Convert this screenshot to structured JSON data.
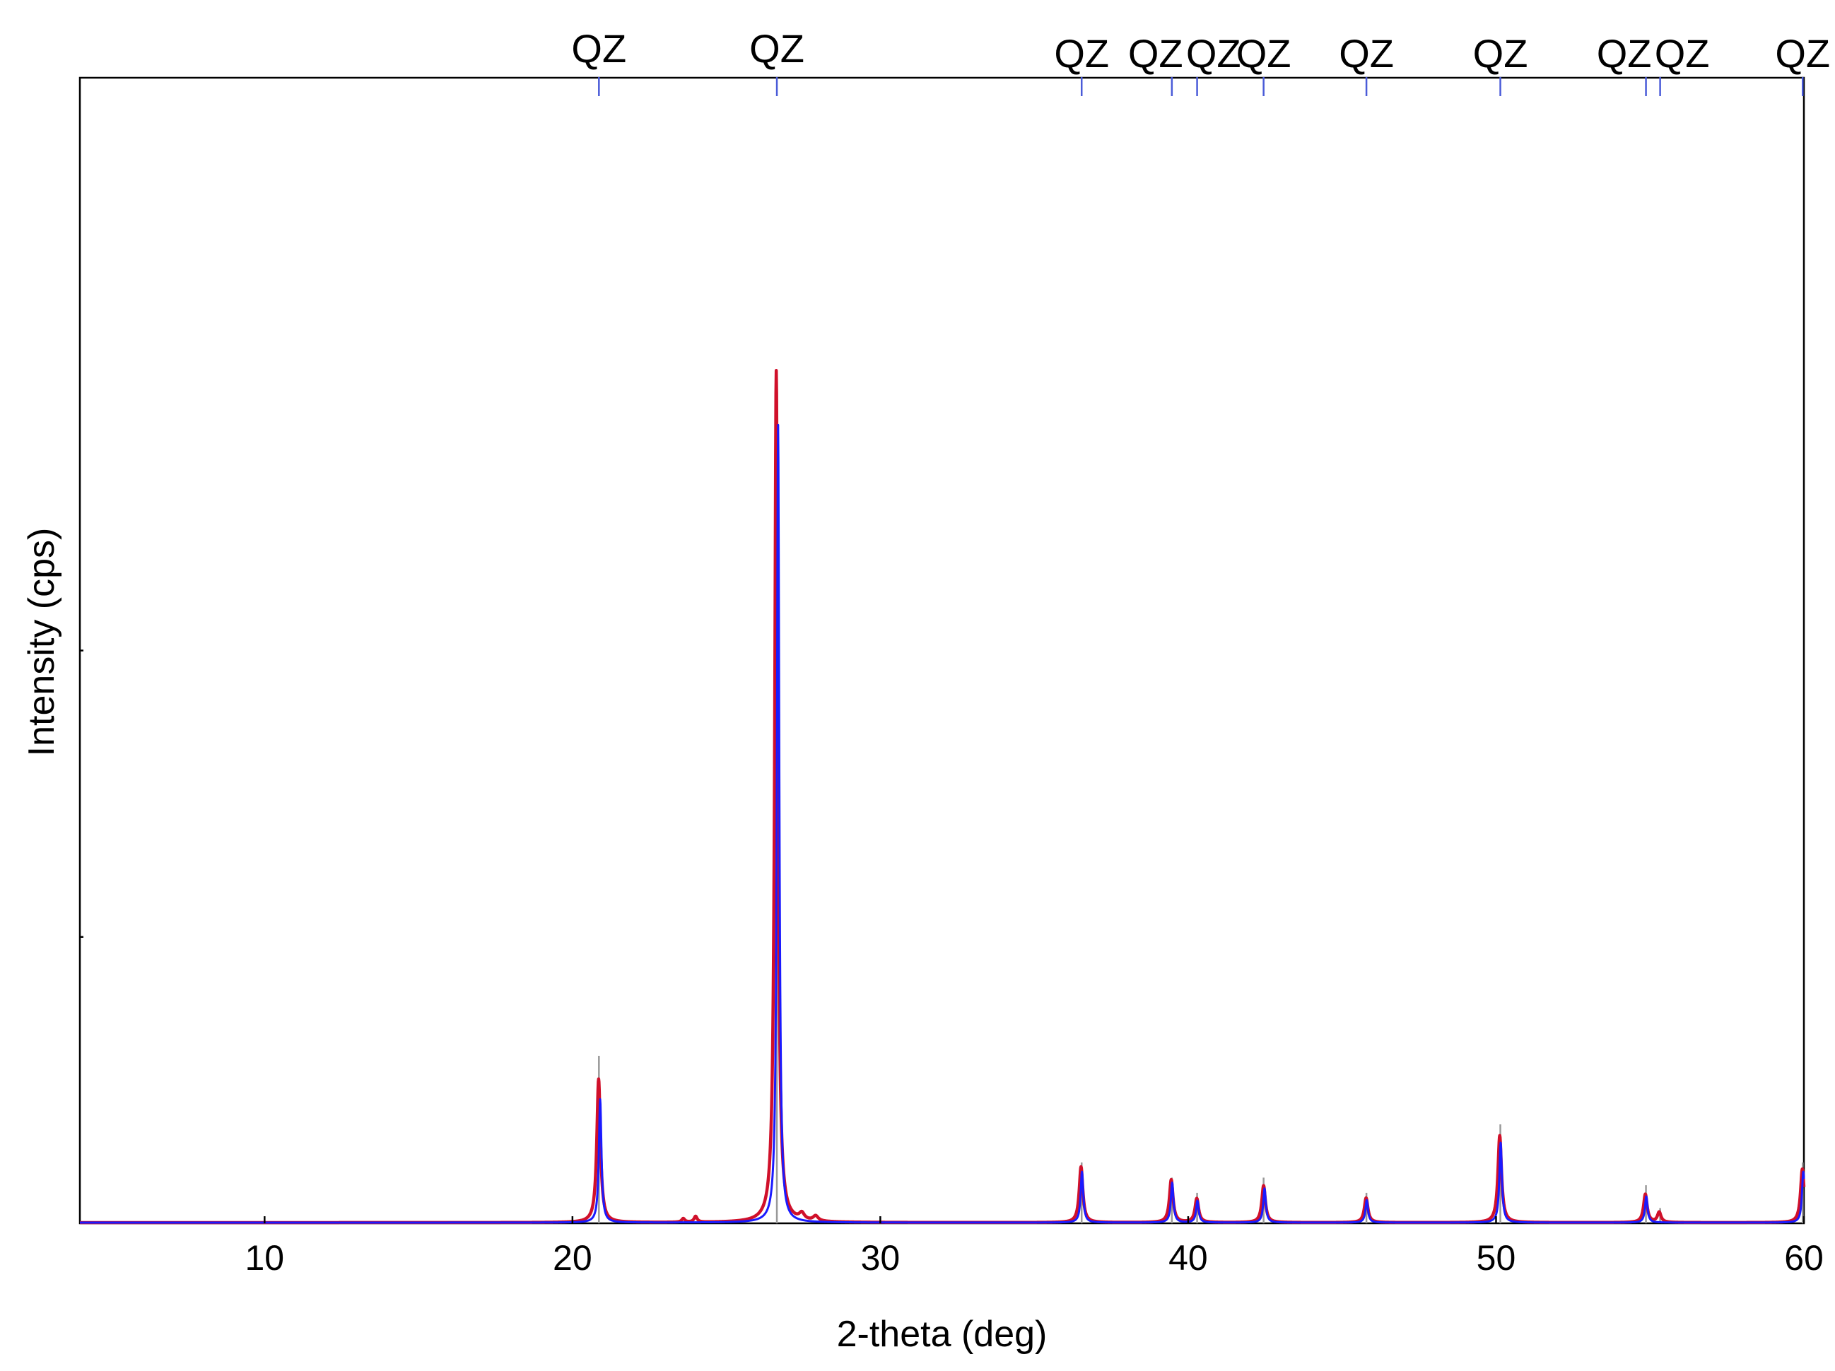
{
  "chart_data": {
    "type": "line",
    "xlabel": "2-theta (deg)",
    "ylabel": "Intensity (cps)",
    "xlim": [
      4,
      60
    ],
    "ylim": [
      0,
      1
    ],
    "x_ticks": [
      10,
      20,
      30,
      40,
      50,
      60
    ],
    "x_tick_labels": [
      "10",
      "20",
      "30",
      "40",
      "50",
      "60"
    ],
    "y_ticks": [
      0.5,
      1.0
    ],
    "y_tick_labels": [],
    "grid": false,
    "legend": false,
    "series": [
      {
        "color": "#d0102a",
        "peaks": [
          {
            "x": 20.85,
            "y": 0.198,
            "w": 0.07
          },
          {
            "x": 23.6,
            "y": 0.005,
            "w": 0.06
          },
          {
            "x": 24.0,
            "y": 0.008,
            "w": 0.06
          },
          {
            "x": 26.62,
            "y": 1.175,
            "w": 0.06
          },
          {
            "x": 27.45,
            "y": 0.009,
            "w": 0.1
          },
          {
            "x": 27.9,
            "y": 0.007,
            "w": 0.1
          },
          {
            "x": 36.52,
            "y": 0.077,
            "w": 0.07
          },
          {
            "x": 39.45,
            "y": 0.059,
            "w": 0.07
          },
          {
            "x": 40.28,
            "y": 0.033,
            "w": 0.07
          },
          {
            "x": 42.45,
            "y": 0.051,
            "w": 0.07
          },
          {
            "x": 45.78,
            "y": 0.034,
            "w": 0.07
          },
          {
            "x": 50.12,
            "y": 0.12,
            "w": 0.07
          },
          {
            "x": 54.85,
            "y": 0.039,
            "w": 0.07
          },
          {
            "x": 55.3,
            "y": 0.014,
            "w": 0.07
          },
          {
            "x": 59.95,
            "y": 0.074,
            "w": 0.07
          }
        ],
        "background": 0.001
      },
      {
        "color": "#1a1aff",
        "peaks": [
          {
            "x": 20.9,
            "y": 0.17,
            "w": 0.05
          },
          {
            "x": 26.68,
            "y": 1.1,
            "w": 0.045
          },
          {
            "x": 36.55,
            "y": 0.07,
            "w": 0.05
          },
          {
            "x": 39.48,
            "y": 0.055,
            "w": 0.05
          },
          {
            "x": 40.3,
            "y": 0.03,
            "w": 0.05
          },
          {
            "x": 42.48,
            "y": 0.047,
            "w": 0.05
          },
          {
            "x": 45.8,
            "y": 0.031,
            "w": 0.05
          },
          {
            "x": 50.15,
            "y": 0.11,
            "w": 0.05
          },
          {
            "x": 54.88,
            "y": 0.036,
            "w": 0.05
          },
          {
            "x": 59.98,
            "y": 0.07,
            "w": 0.05
          }
        ],
        "background": 0.001
      }
    ],
    "reference_lines": [
      {
        "x": 20.86,
        "y": 0.22
      },
      {
        "x": 26.64,
        "y": 1.0
      },
      {
        "x": 36.54,
        "y": 0.08
      },
      {
        "x": 39.47,
        "y": 0.06
      },
      {
        "x": 40.29,
        "y": 0.04
      },
      {
        "x": 42.45,
        "y": 0.06
      },
      {
        "x": 45.79,
        "y": 0.04
      },
      {
        "x": 50.14,
        "y": 0.13
      },
      {
        "x": 54.87,
        "y": 0.05
      },
      {
        "x": 55.33,
        "y": 0.02
      },
      {
        "x": 59.96,
        "y": 0.08
      }
    ],
    "phase_markers": [
      {
        "x": 20.86,
        "label": "QZ"
      },
      {
        "x": 26.64,
        "label": "QZ"
      },
      {
        "x": 36.54,
        "label": "QZ"
      },
      {
        "x": 39.47,
        "label": "QZ"
      },
      {
        "x": 40.29,
        "label": "QZ"
      },
      {
        "x": 42.45,
        "label": "QZ"
      },
      {
        "x": 45.79,
        "label": "QZ"
      },
      {
        "x": 50.14,
        "label": "QZ"
      },
      {
        "x": 54.87,
        "label": "QZ"
      },
      {
        "x": 55.33,
        "label": "QZ"
      },
      {
        "x": 59.96,
        "label": "QZ"
      }
    ],
    "marker_color": "#4a5bd8"
  }
}
